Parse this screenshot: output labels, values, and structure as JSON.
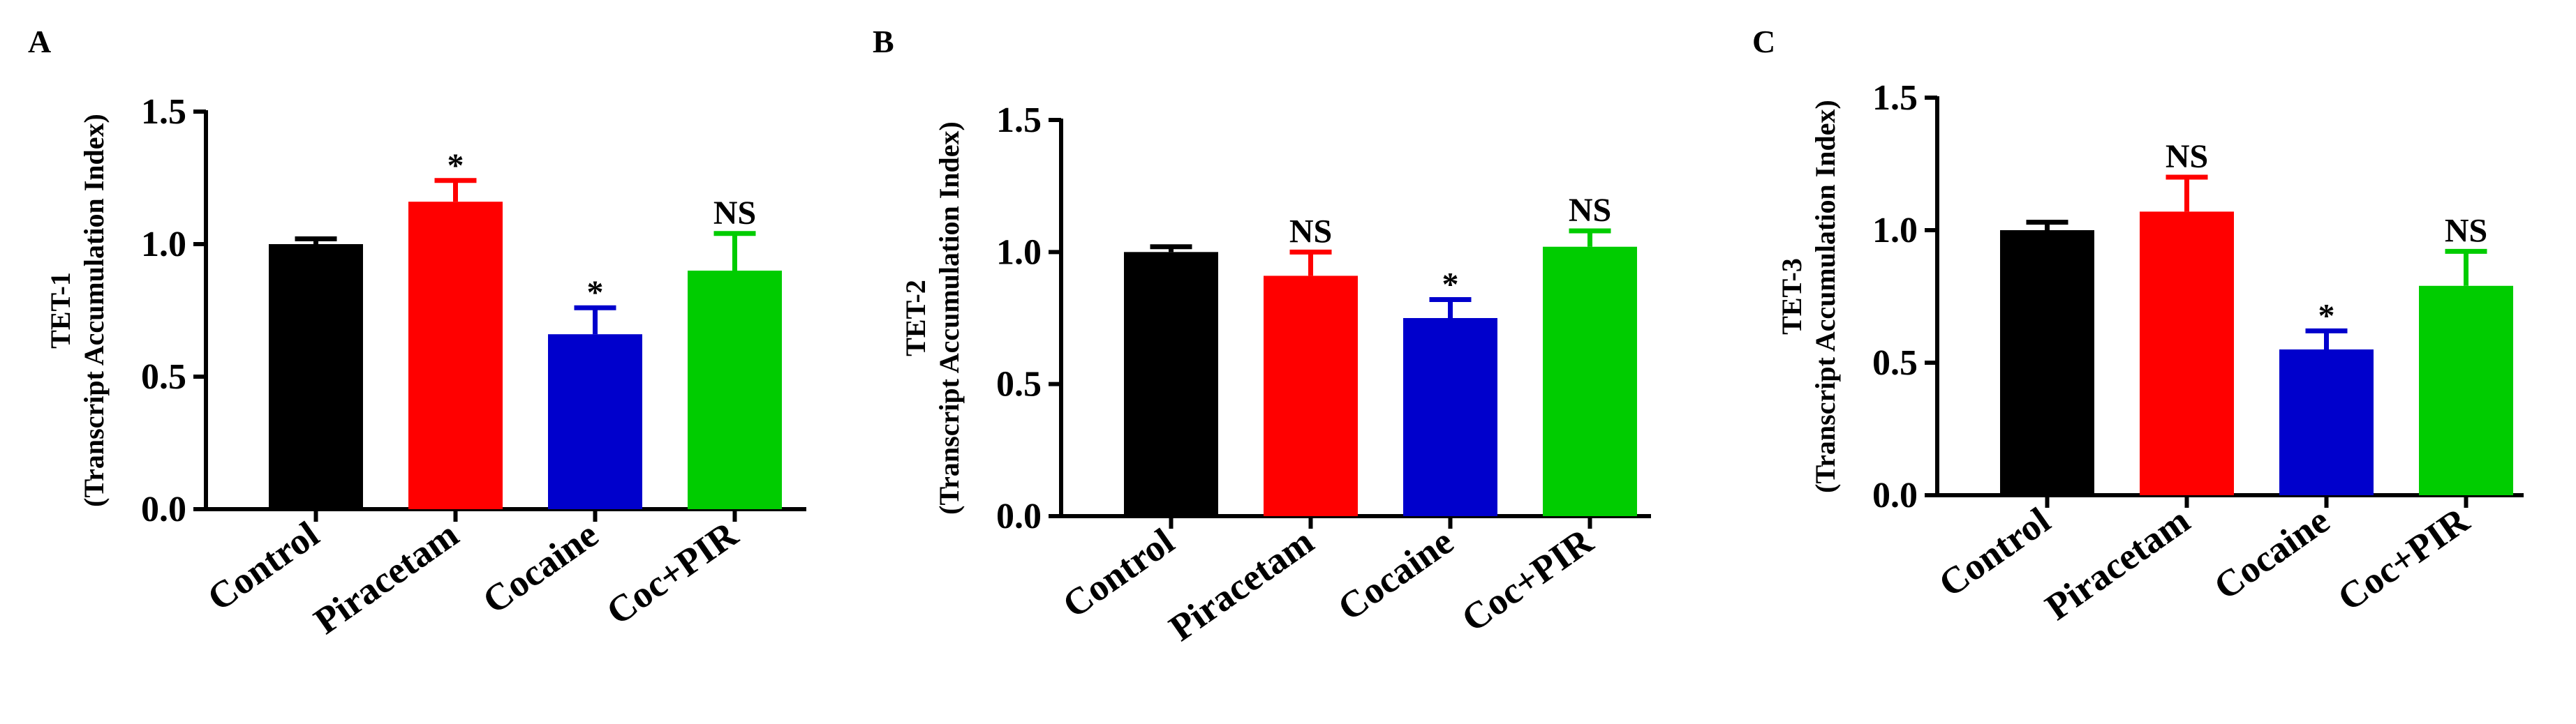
{
  "figure": {
    "panel_letters": [
      "A",
      "B",
      "C"
    ]
  },
  "chart_data": [
    {
      "panel": "A",
      "type": "bar",
      "categories": [
        "Control",
        "Piracetam",
        "Cocaine",
        "Coc+PIR"
      ],
      "values": [
        1.0,
        1.16,
        0.66,
        0.9
      ],
      "errors": [
        0.02,
        0.08,
        0.1,
        0.14
      ],
      "significance": [
        "",
        "*",
        "*",
        "NS"
      ],
      "colors": [
        "#000000",
        "#ff0000",
        "#0000cc",
        "#00cc00"
      ],
      "ylabel": [
        "TET-1",
        "(Transcript Accumulation Index)"
      ],
      "xlabel": "",
      "ylim": [
        0,
        1.5
      ],
      "yticks": [
        "0.0",
        "0.5",
        "1.0",
        "1.5"
      ],
      "grid": false
    },
    {
      "panel": "B",
      "type": "bar",
      "categories": [
        "Control",
        "Piracetam",
        "Cocaine",
        "Coc+PIR"
      ],
      "values": [
        1.0,
        0.91,
        0.75,
        1.02
      ],
      "errors": [
        0.02,
        0.09,
        0.07,
        0.06
      ],
      "significance": [
        "",
        "NS",
        "*",
        "NS"
      ],
      "colors": [
        "#000000",
        "#ff0000",
        "#0000cc",
        "#00cc00"
      ],
      "ylabel": [
        "TET-2",
        "(Transcript Accumulation Index)"
      ],
      "xlabel": "",
      "ylim": [
        0,
        1.5
      ],
      "yticks": [
        "0.0",
        "0.5",
        "1.0",
        "1.5"
      ],
      "grid": false
    },
    {
      "panel": "C",
      "type": "bar",
      "categories": [
        "Control",
        "Piracetam",
        "Cocaine",
        "Coc+PIR"
      ],
      "values": [
        1.0,
        1.07,
        0.55,
        0.79
      ],
      "errors": [
        0.03,
        0.13,
        0.07,
        0.13
      ],
      "significance": [
        "",
        "NS",
        "*",
        "NS"
      ],
      "colors": [
        "#000000",
        "#ff0000",
        "#0000cc",
        "#00cc00"
      ],
      "ylabel": [
        "TET-3",
        "(Transcript Accumulation Index)"
      ],
      "xlabel": "",
      "ylim": [
        0,
        1.5
      ],
      "yticks": [
        "0.0",
        "0.5",
        "1.0",
        "1.5"
      ],
      "grid": false
    }
  ]
}
